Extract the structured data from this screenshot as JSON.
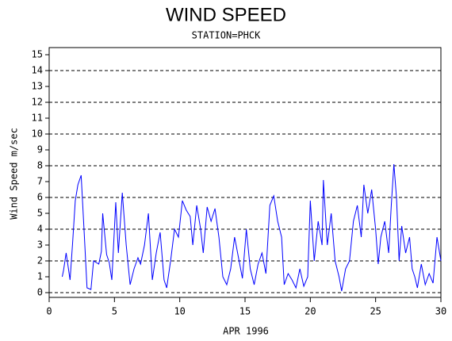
{
  "chart_data": {
    "type": "line",
    "title": "WIND SPEED",
    "subtitle": "STATION=PHCK",
    "x_label": "APR 1996",
    "y_label": "Wind Speed m/sec",
    "xlim": [
      0,
      30
    ],
    "xticks": [
      0,
      5,
      10,
      15,
      20,
      25,
      30
    ],
    "ylim": [
      0,
      15
    ],
    "yticks": [
      0,
      1,
      2,
      3,
      4,
      5,
      6,
      7,
      8,
      9,
      10,
      11,
      12,
      13,
      14,
      15
    ],
    "grid_lines": [
      0,
      2,
      4,
      6,
      8,
      10,
      12,
      14
    ],
    "series": [
      {
        "name": "Wind Speed",
        "color": "#0000ff",
        "x": [
          1.0,
          1.1,
          1.3,
          1.6,
          1.8,
          2.0,
          2.2,
          2.45,
          2.7,
          2.9,
          3.2,
          3.4,
          3.8,
          4.0,
          4.1,
          4.4,
          4.6,
          4.8,
          5.1,
          5.3,
          5.6,
          5.9,
          6.2,
          6.5,
          6.8,
          7.0,
          7.3,
          7.6,
          7.9,
          8.2,
          8.5,
          8.8,
          9.0,
          9.3,
          9.6,
          9.9,
          10.2,
          10.5,
          10.8,
          11.0,
          11.3,
          11.6,
          11.8,
          12.1,
          12.4,
          12.7,
          13.0,
          13.3,
          13.6,
          13.9,
          14.2,
          14.5,
          14.8,
          15.1,
          15.4,
          15.7,
          16.0,
          16.3,
          16.6,
          16.9,
          17.2,
          17.5,
          17.8,
          18.0,
          18.3,
          18.6,
          18.9,
          19.2,
          19.5,
          19.8,
          20.0,
          20.3,
          20.6,
          20.9,
          21.0,
          21.3,
          21.6,
          21.9,
          22.2,
          22.4,
          22.7,
          23.0,
          23.3,
          23.6,
          23.9,
          24.1,
          24.4,
          24.7,
          25.0,
          25.2,
          25.4,
          25.7,
          26.0,
          26.2,
          26.4,
          26.6,
          26.8,
          27.0,
          27.3,
          27.6,
          27.8,
          28.0,
          28.2,
          28.5,
          28.8,
          29.1,
          29.4,
          29.7,
          29.9,
          30.0
        ],
        "values": [
          1.0,
          1.4,
          2.5,
          0.8,
          3.2,
          5.8,
          6.8,
          7.4,
          3.5,
          0.3,
          0.2,
          2.0,
          1.8,
          2.6,
          5.0,
          2.4,
          1.9,
          0.8,
          5.7,
          2.5,
          6.3,
          3.0,
          0.5,
          1.5,
          2.2,
          1.8,
          3.0,
          5.0,
          0.8,
          2.5,
          3.8,
          0.8,
          0.3,
          2.0,
          4.0,
          3.5,
          5.8,
          5.2,
          4.8,
          3.0,
          5.5,
          4.0,
          2.5,
          5.4,
          4.5,
          5.3,
          3.5,
          1.0,
          0.5,
          1.5,
          3.5,
          2.2,
          0.9,
          4.0,
          1.5,
          0.5,
          1.8,
          2.5,
          1.2,
          5.5,
          6.1,
          4.5,
          3.5,
          0.5,
          1.2,
          0.8,
          0.3,
          1.5,
          0.4,
          1.0,
          5.8,
          2.0,
          4.5,
          3.0,
          7.1,
          3.0,
          5.0,
          2.0,
          1.0,
          0.1,
          1.5,
          2.0,
          4.5,
          5.5,
          3.5,
          6.8,
          5.0,
          6.5,
          4.0,
          1.8,
          3.5,
          4.5,
          2.5,
          5.5,
          8.1,
          6.0,
          2.0,
          4.2,
          2.5,
          3.5,
          1.5,
          1.0,
          0.3,
          1.8,
          0.5,
          1.2,
          0.6,
          3.5,
          2.5,
          2.0
        ]
      }
    ]
  }
}
